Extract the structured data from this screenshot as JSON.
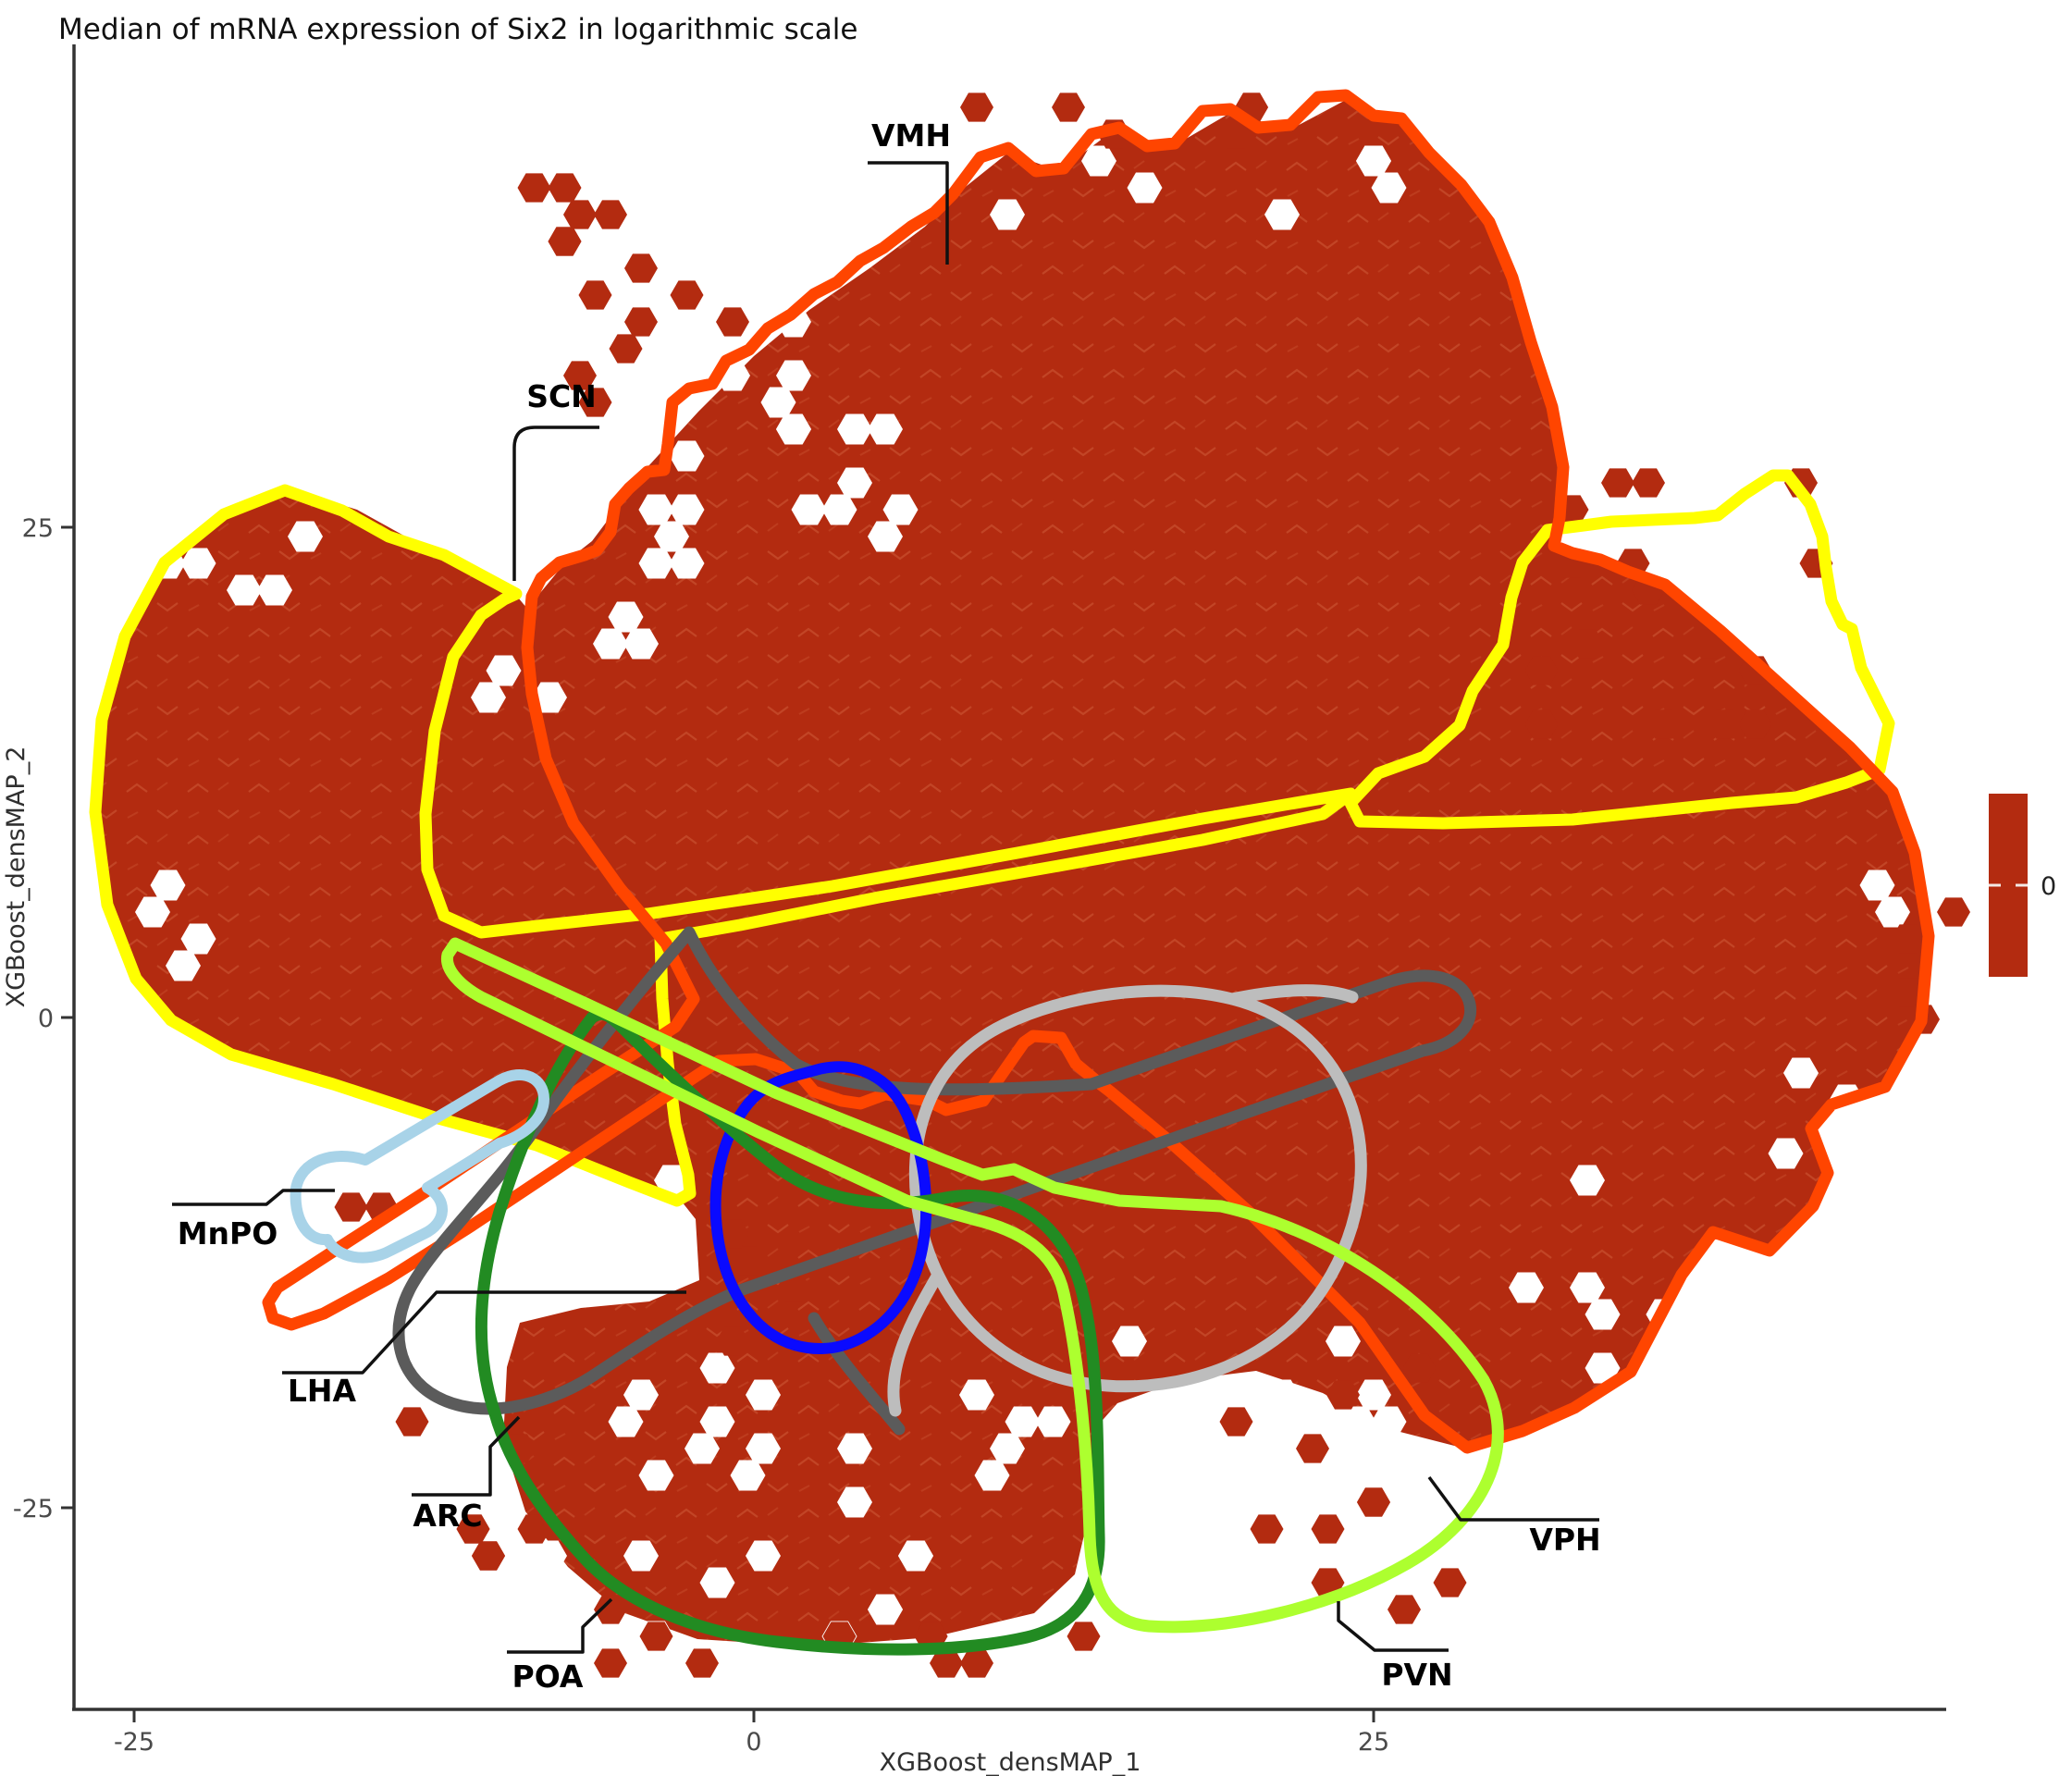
{
  "chart_data": {
    "type": "hexbin",
    "title": "Median of mRNA expression of Six2 in logarithmic scale",
    "xlabel": "XGBoost_densMAP_1",
    "ylabel": "XGBoost_densMAP_2",
    "x_ticks": [
      "-25",
      "0",
      "25"
    ],
    "y_ticks": [
      "25",
      "0",
      "-25"
    ],
    "x_range_estimate": [
      -30,
      48
    ],
    "y_range_estimate": [
      -33,
      39
    ],
    "grid": "off",
    "hexbin_fill_color": "#B32B10",
    "hexbin_value_constant": 0,
    "legend": {
      "position": "right",
      "bar_color": "#B32B10",
      "tick_label": "0"
    },
    "regions": [
      {
        "name": "VMH",
        "outline_color": "#FF4500"
      },
      {
        "name": "SCN",
        "outline_color": "#FFFF00"
      },
      {
        "name": "MnPO",
        "outline_color": "#A8D3E8"
      },
      {
        "name": "LHA",
        "outline_color": "#5B5B5B"
      },
      {
        "name": "ARC",
        "outline_color": "#228B22"
      },
      {
        "name": "POA",
        "outline_color": "#228B22"
      },
      {
        "name": "PVN",
        "outline_color": "#ADFF2F"
      },
      {
        "name": "VPH",
        "outline_color": "#ADFF2F"
      }
    ],
    "unlabeled_outline_colors": [
      "#0A0AFF",
      "#BDBDBD",
      "#FF4500",
      "#FFFF00"
    ]
  }
}
